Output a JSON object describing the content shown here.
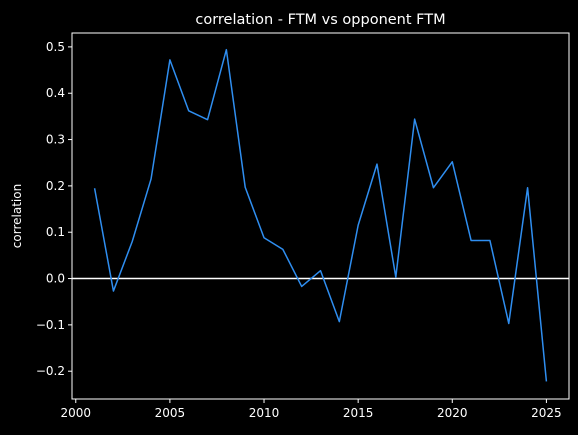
{
  "chart_data": {
    "type": "line",
    "title": "correlation - FTM vs opponent FTM",
    "xlabel": "",
    "ylabel": "correlation",
    "xlim": [
      1999.8,
      2026.2
    ],
    "ylim": [
      -0.26,
      0.53
    ],
    "xticks": [
      2000,
      2005,
      2010,
      2015,
      2020,
      2025
    ],
    "yticks": [
      -0.2,
      -0.1,
      0.0,
      0.1,
      0.2,
      0.3,
      0.4,
      0.5
    ],
    "ytick_labels": [
      "−0.2",
      "−0.1",
      "0.0",
      "0.1",
      "0.2",
      "0.3",
      "0.4",
      "0.5"
    ],
    "reference_line_y": 0,
    "grid": false,
    "colors": {
      "background": "#000000",
      "line": "#2f8ef0",
      "axes": "#ffffff",
      "reference_line": "#ffffff"
    },
    "series": [
      {
        "x": [
          2001,
          2002,
          2003,
          2004,
          2005,
          2006,
          2007,
          2008,
          2009,
          2010,
          2011,
          2012,
          2013,
          2014,
          2015,
          2016,
          2017,
          2018,
          2019,
          2020,
          2021,
          2022,
          2023,
          2024,
          2025
        ],
        "values": [
          0.195,
          -0.027,
          0.08,
          0.215,
          0.472,
          0.362,
          0.343,
          0.494,
          0.197,
          0.088,
          0.063,
          -0.017,
          0.017,
          -0.093,
          0.115,
          0.247,
          0.003,
          0.344,
          0.196,
          0.252,
          0.082,
          0.082,
          -0.097,
          0.196,
          -0.222
        ]
      }
    ]
  }
}
